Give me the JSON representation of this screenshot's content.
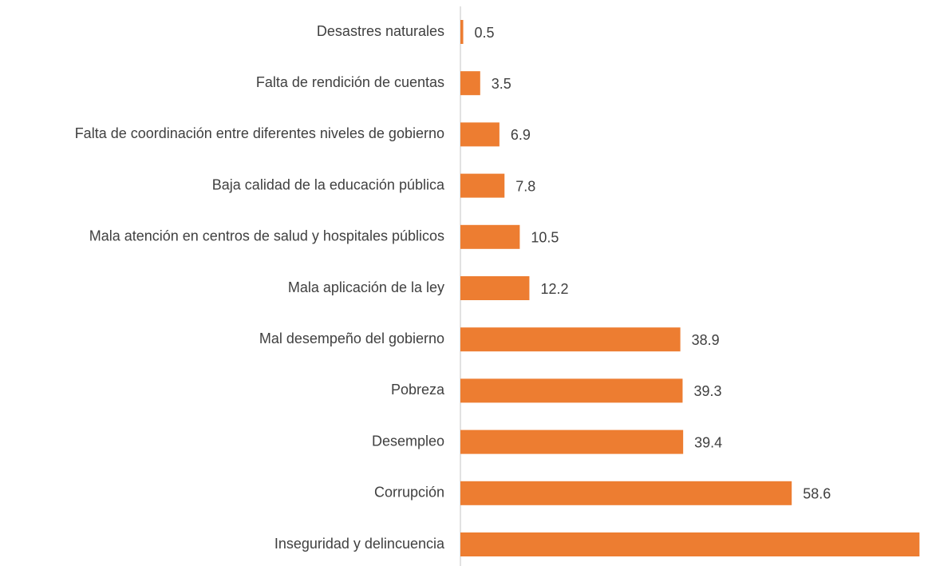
{
  "chart_data": {
    "type": "bar",
    "orientation": "horizontal",
    "categories": [
      "Desastres naturales",
      "Falta de rendición de cuentas",
      "Falta de coordinación entre diferentes niveles de gobierno",
      "Baja calidad de la educación pública",
      "Mala atención en centros de salud y hospitales públicos",
      "Mala aplicación de la ley",
      "Mal desempeño del gobierno",
      "Pobreza",
      "Desempleo",
      "Corrupción",
      "Inseguridad y delincuencia"
    ],
    "values": [
      0.5,
      3.5,
      6.9,
      7.8,
      10.5,
      12.2,
      38.9,
      39.3,
      39.4,
      58.6,
      81.2
    ],
    "color": "#ed7d31",
    "xlim": [
      0,
      82
    ]
  }
}
